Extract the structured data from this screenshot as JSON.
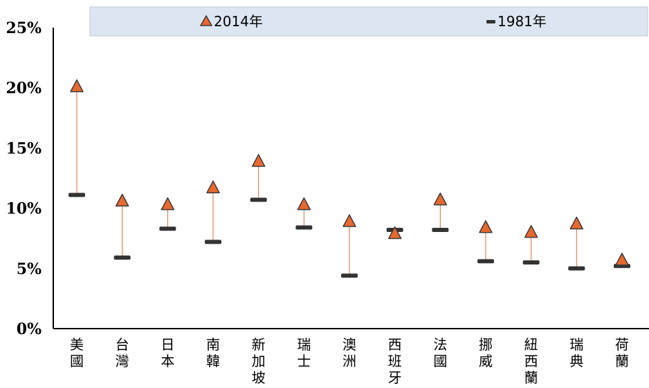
{
  "chart_data": {
    "type": "scatter",
    "title": "",
    "xlabel": "",
    "ylabel": "",
    "ylim": [
      0,
      25
    ],
    "yticks": [
      "0%",
      "5%",
      "10%",
      "15%",
      "20%",
      "25%"
    ],
    "yunit": "%",
    "grid": false,
    "legend_position": "top",
    "categories": [
      "美國",
      "台灣",
      "日本",
      "南韓",
      "新加坡",
      "瑞士",
      "澳洲",
      "西班牙",
      "法國",
      "挪威",
      "紐西蘭",
      "瑞典",
      "荷蘭"
    ],
    "series": [
      {
        "name": "2014年",
        "marker": "triangle",
        "color": "#E8682E",
        "values": [
          20.2,
          10.7,
          10.4,
          11.8,
          14.0,
          10.4,
          9.0,
          8.0,
          10.8,
          8.5,
          8.1,
          8.8,
          5.8
        ]
      },
      {
        "name": "1981年",
        "marker": "dash",
        "color": "#333333",
        "values": [
          11.1,
          5.9,
          8.3,
          7.2,
          10.7,
          8.4,
          4.4,
          8.2,
          8.2,
          5.6,
          5.5,
          5.0,
          5.2
        ]
      }
    ],
    "connector_color": "#E8682E",
    "legend_background": "#DCE6F2"
  }
}
